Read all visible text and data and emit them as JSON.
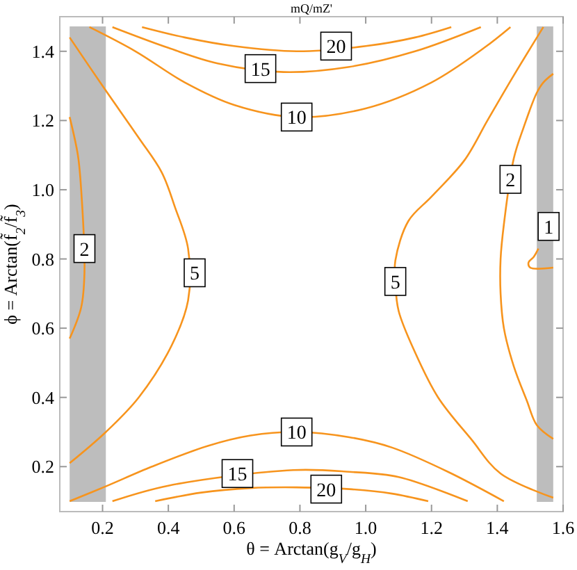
{
  "chart_data": {
    "type": "line",
    "title": "mQ/mZ'",
    "xlabel": "θ = Arctan(g$_{V}$/g$_{H}$)",
    "ylabel": "ϕ = Arctan(f̃$_{2}$/f̃$_{3}$)",
    "xlim": [
      0.07,
      1.6
    ],
    "ylim": [
      0.07,
      1.5
    ],
    "xticks": [
      0.2,
      0.4,
      0.6,
      0.8,
      {
        "value": 1,
        "label": "1.0"
      },
      1.2,
      1.4,
      1.6
    ],
    "yticks": [
      0.2,
      0.4,
      0.6,
      0.8,
      {
        "value": 1,
        "label": "1.0"
      },
      1.2,
      1.4
    ],
    "grid": false,
    "line_style": "solid",
    "marker": "none",
    "bands": [
      {
        "axis": "x",
        "from": 0.1,
        "to": 0.21,
        "color": "#bdbdbd"
      },
      {
        "axis": "x",
        "from": 1.52,
        "to": 1.57,
        "color": "#bdbdbd"
      }
    ],
    "series": [
      {
        "color": "#f7941d",
        "x": [
          0.32,
          0.45,
          0.6,
          0.79,
          1.0,
          1.15,
          1.26
        ],
        "values": [
          1.47,
          1.44,
          1.415,
          1.4,
          1.415,
          1.44,
          1.47
        ]
      },
      {
        "color": "#f7941d",
        "x": [
          0.23,
          0.4,
          0.55,
          0.75,
          0.95,
          1.15,
          1.35
        ],
        "values": [
          1.47,
          1.41,
          1.365,
          1.34,
          1.355,
          1.4,
          1.47
        ]
      },
      {
        "color": "#f7941d",
        "x": [
          0.16,
          0.3,
          0.45,
          0.6,
          0.79,
          1.0,
          1.2,
          1.36,
          1.44
        ],
        "values": [
          1.47,
          1.4,
          1.31,
          1.245,
          1.21,
          1.235,
          1.31,
          1.41,
          1.47
        ]
      },
      {
        "color": "#f7941d",
        "x": [
          0.1,
          0.2,
          0.31,
          0.38,
          0.42,
          0.46,
          0.46,
          0.41,
          0.31,
          0.21,
          0.1
        ],
        "values": [
          1.44,
          1.3,
          1.15,
          1.05,
          0.95,
          0.83,
          0.68,
          0.55,
          0.4,
          0.3,
          0.21
        ]
      },
      {
        "color": "#f7941d",
        "x": [
          1.54,
          1.45,
          1.37,
          1.3,
          1.2,
          1.13,
          1.09,
          1.09,
          1.1,
          1.15,
          1.22,
          1.32,
          1.41,
          1.57
        ],
        "values": [
          1.47,
          1.33,
          1.2,
          1.085,
          0.98,
          0.91,
          0.795,
          0.73,
          0.65,
          0.53,
          0.4,
          0.28,
          0.18,
          0.11
        ]
      },
      {
        "color": "#f7941d",
        "x": [
          0.1,
          0.125,
          0.135,
          0.145,
          0.135,
          0.1
        ],
        "values": [
          1.21,
          1.1,
          1.0,
          0.76,
          0.66,
          0.57
        ]
      },
      {
        "color": "#f7941d",
        "x": [
          1.57,
          1.54,
          1.52,
          1.48,
          1.45,
          1.42,
          1.41,
          1.41,
          1.42,
          1.45,
          1.49,
          1.52,
          1.57
        ],
        "values": [
          1.335,
          1.31,
          1.28,
          1.18,
          1.09,
          0.9,
          0.8,
          0.7,
          0.6,
          0.49,
          0.39,
          0.32,
          0.28
        ]
      },
      {
        "color": "#f7941d",
        "x": [
          1.525,
          1.51,
          1.495,
          1.5,
          1.57
        ],
        "values": [
          0.83,
          0.805,
          0.79,
          0.775,
          0.775
        ]
      },
      {
        "color": "#f7941d",
        "x": [
          0.1,
          0.21,
          0.35,
          0.52,
          0.65,
          0.79,
          0.95,
          1.08,
          1.25,
          1.42
        ],
        "values": [
          0.1,
          0.143,
          0.2,
          0.26,
          0.29,
          0.3,
          0.285,
          0.255,
          0.185,
          0.1
        ]
      },
      {
        "color": "#f7941d",
        "x": [
          0.23,
          0.4,
          0.78,
          0.95,
          1.1,
          1.31
        ],
        "values": [
          0.1,
          0.145,
          0.19,
          0.185,
          0.17,
          0.1
        ]
      },
      {
        "color": "#f7941d",
        "x": [
          0.36,
          0.5,
          0.65,
          0.79,
          0.95,
          1.08,
          1.19
        ],
        "values": [
          0.1,
          0.125,
          0.138,
          0.14,
          0.135,
          0.122,
          0.1
        ]
      }
    ],
    "annotations": [
      {
        "text": "20",
        "x": 0.91,
        "y": 1.415
      },
      {
        "text": "15",
        "x": 0.68,
        "y": 1.35
      },
      {
        "text": "10",
        "x": 0.79,
        "y": 1.21
      },
      {
        "text": "5",
        "x": 0.48,
        "y": 0.76
      },
      {
        "text": "5",
        "x": 1.09,
        "y": 0.735
      },
      {
        "text": "2",
        "x": 0.145,
        "y": 0.83
      },
      {
        "text": "2",
        "x": 1.44,
        "y": 1.03
      },
      {
        "text": "1",
        "x": 1.556,
        "y": 0.894
      },
      {
        "text": "10",
        "x": 0.79,
        "y": 0.3
      },
      {
        "text": "15",
        "x": 0.61,
        "y": 0.18
      },
      {
        "text": "20",
        "x": 0.88,
        "y": 0.135
      }
    ]
  }
}
